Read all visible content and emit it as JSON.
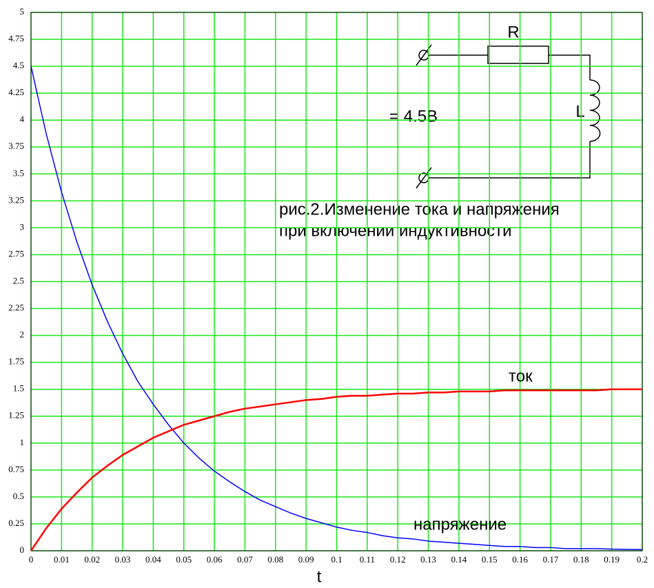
{
  "chart_data": {
    "type": "line",
    "x_label": "t",
    "x": [
      0,
      0.005,
      0.01,
      0.015,
      0.02,
      0.025,
      0.03,
      0.035,
      0.04,
      0.045,
      0.05,
      0.055,
      0.06,
      0.065,
      0.07,
      0.075,
      0.08,
      0.085,
      0.09,
      0.095,
      0.1,
      0.105,
      0.11,
      0.115,
      0.12,
      0.125,
      0.13,
      0.135,
      0.14,
      0.145,
      0.15,
      0.155,
      0.16,
      0.165,
      0.17,
      0.175,
      0.18,
      0.185,
      0.19,
      0.195,
      0.2
    ],
    "series": [
      {
        "name": "напряжение",
        "color": "#0000ff",
        "values": [
          4.5,
          3.87,
          3.33,
          2.87,
          2.47,
          2.13,
          1.83,
          1.57,
          1.36,
          1.17,
          1.0,
          0.86,
          0.74,
          0.64,
          0.55,
          0.47,
          0.41,
          0.35,
          0.3,
          0.26,
          0.22,
          0.19,
          0.17,
          0.14,
          0.12,
          0.11,
          0.09,
          0.08,
          0.07,
          0.06,
          0.05,
          0.04,
          0.04,
          0.03,
          0.03,
          0.02,
          0.02,
          0.02,
          0.015,
          0.013,
          0.011
        ]
      },
      {
        "name": "ток",
        "color": "#ff0000",
        "values": [
          0,
          0.21,
          0.39,
          0.54,
          0.68,
          0.79,
          0.89,
          0.97,
          1.05,
          1.11,
          1.17,
          1.21,
          1.25,
          1.29,
          1.32,
          1.34,
          1.36,
          1.38,
          1.4,
          1.41,
          1.43,
          1.44,
          1.44,
          1.45,
          1.46,
          1.46,
          1.47,
          1.47,
          1.48,
          1.48,
          1.48,
          1.49,
          1.49,
          1.49,
          1.49,
          1.49,
          1.49,
          1.49,
          1.5,
          1.5,
          1.5
        ]
      }
    ],
    "xlim": [
      0,
      0.2
    ],
    "xticks": [
      0,
      0.01,
      0.02,
      0.03,
      0.04,
      0.05,
      0.06,
      0.07,
      0.08,
      0.09,
      0.1,
      0.11,
      0.12,
      0.13,
      0.14,
      0.15,
      0.16,
      0.17,
      0.18,
      0.19,
      0.2
    ],
    "ylim": [
      0,
      5
    ],
    "yticks": [
      0,
      0.25,
      0.5,
      0.75,
      1,
      1.25,
      1.5,
      1.75,
      2,
      2.25,
      2.5,
      2.75,
      3,
      3.25,
      3.5,
      3.75,
      4,
      4.25,
      4.5,
      4.75,
      5
    ],
    "grid": true,
    "grid_color": "#19e619",
    "caption": [
      "рис.2.Изменение тока и напряжения",
      "при включении индуктивности"
    ],
    "circuit": {
      "resistor_label": "R",
      "inductor_label": "L",
      "source_label": "= 4.5B"
    }
  }
}
